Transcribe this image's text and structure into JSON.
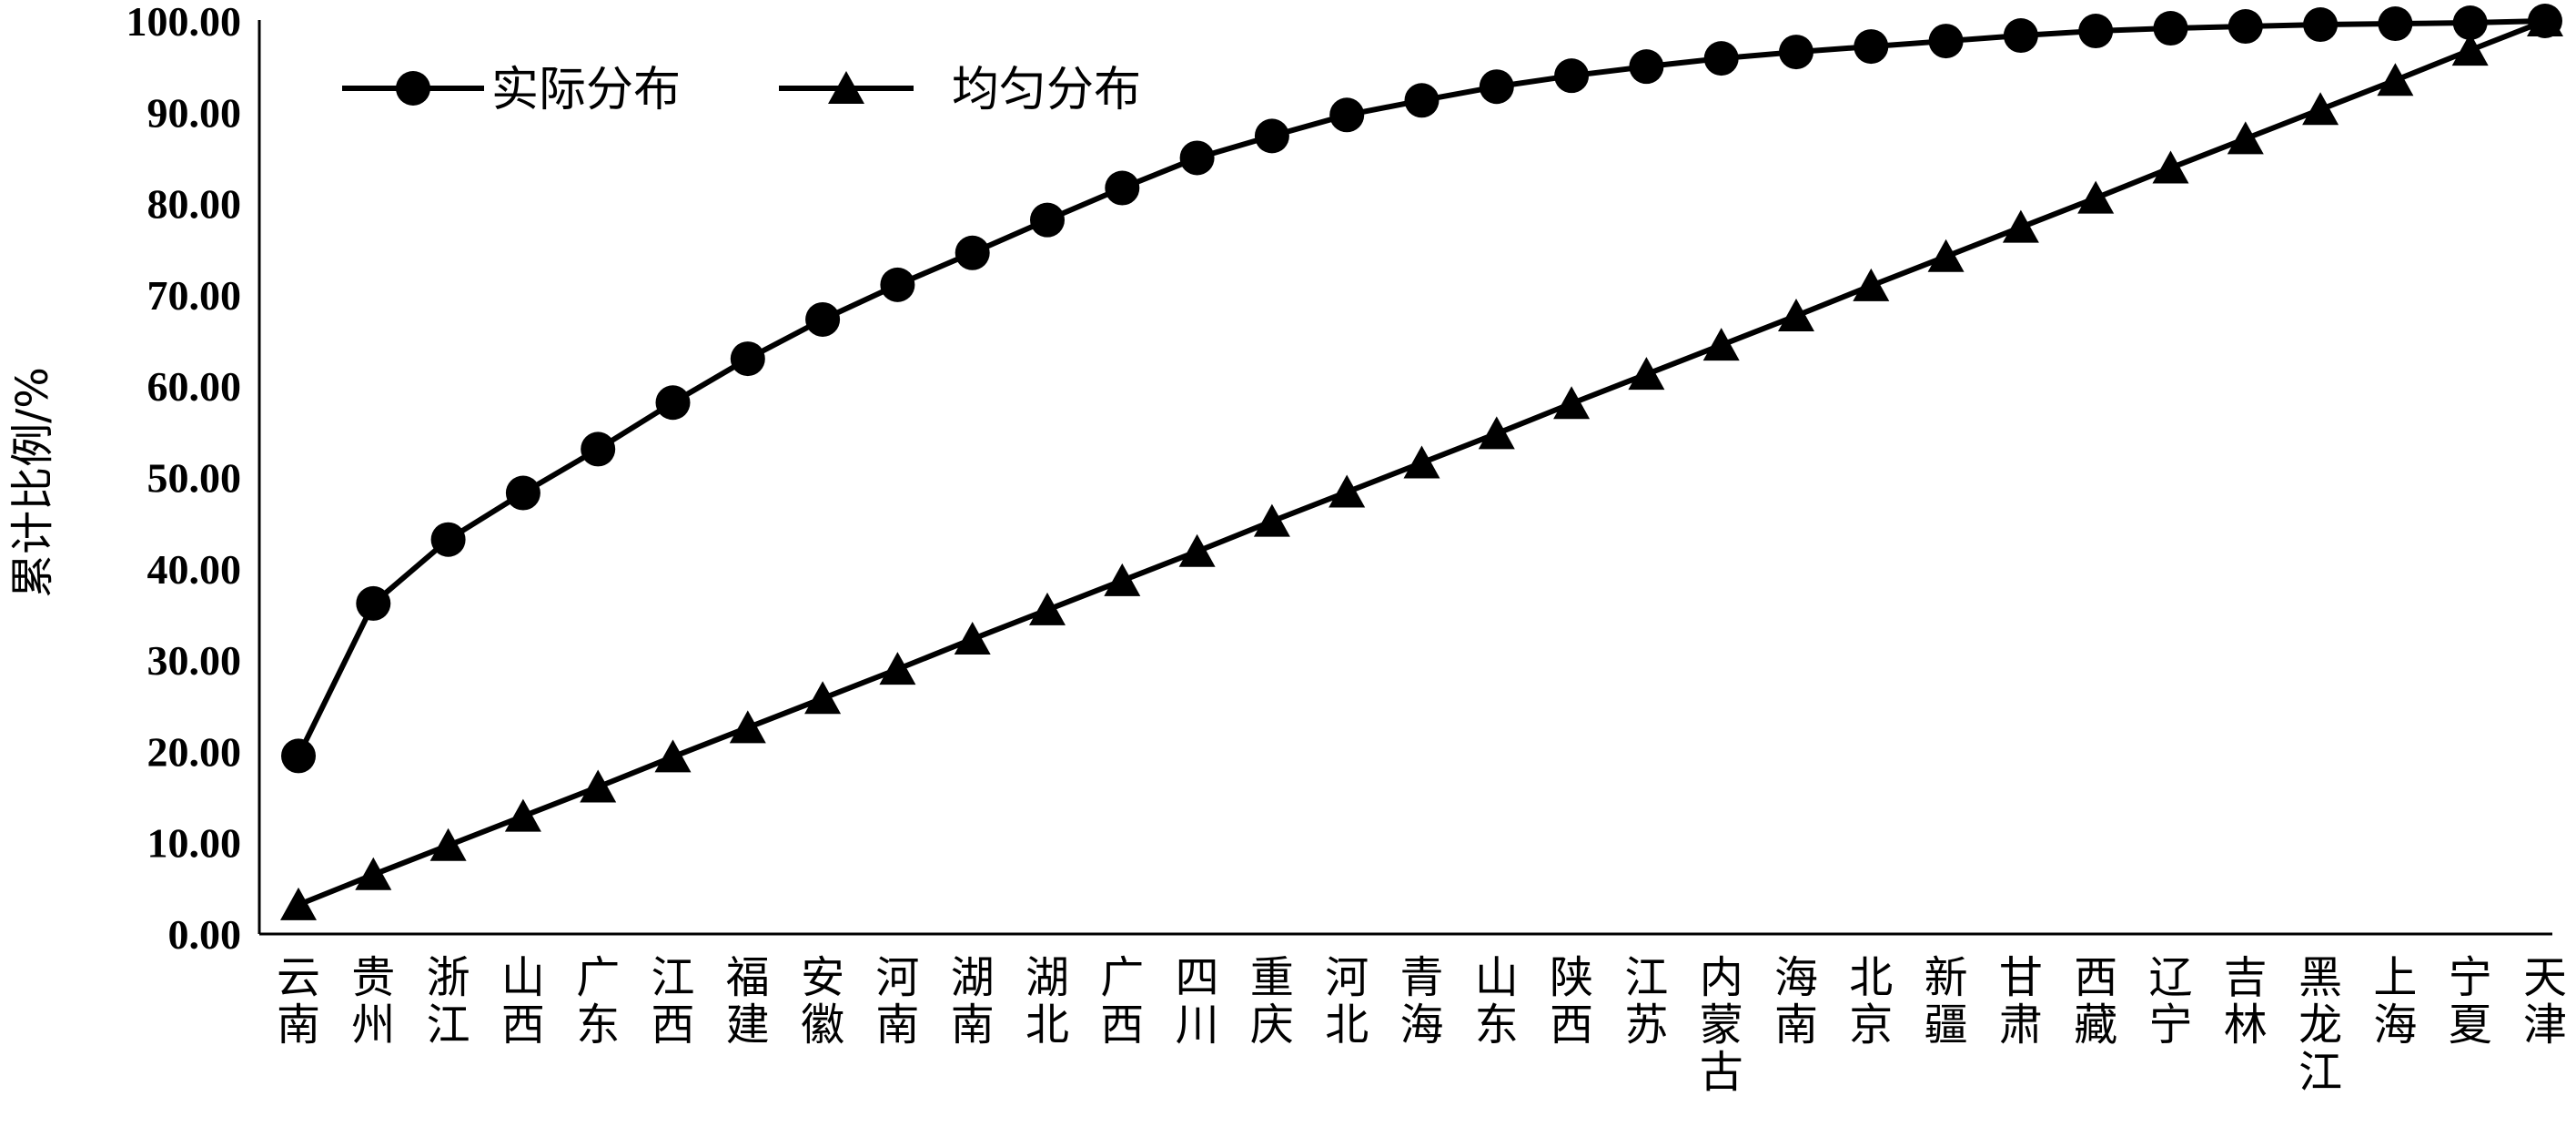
{
  "chart_data": {
    "type": "line",
    "ylabel": "累计比例/%",
    "ylim": [
      0,
      100
    ],
    "yticks": [
      "0.00",
      "10.00",
      "20.00",
      "30.00",
      "40.00",
      "50.00",
      "60.00",
      "70.00",
      "80.00",
      "90.00",
      "100.00"
    ],
    "categories": [
      "云南",
      "贵州",
      "浙江",
      "山西",
      "广东",
      "江西",
      "福建",
      "安徽",
      "河南",
      "湖南",
      "湖北",
      "广西",
      "四川",
      "重庆",
      "河北",
      "青海",
      "山东",
      "陕西",
      "江苏",
      "内蒙古",
      "海南",
      "北京",
      "新疆",
      "甘肃",
      "西藏",
      "辽宁",
      "吉林",
      "黑龙江",
      "上海",
      "宁夏",
      "天津"
    ],
    "legend_position": "top-left",
    "grid": false,
    "series": [
      {
        "name": "实际分布",
        "marker": "circle",
        "values": [
          19.5,
          36.2,
          43.2,
          48.3,
          53.1,
          58.2,
          63.0,
          67.3,
          71.1,
          74.6,
          78.2,
          81.7,
          85.0,
          87.4,
          89.7,
          91.3,
          92.8,
          94.0,
          95.0,
          95.9,
          96.6,
          97.2,
          97.8,
          98.4,
          98.9,
          99.2,
          99.4,
          99.6,
          99.7,
          99.8,
          100.0
        ]
      },
      {
        "name": "均匀分布",
        "marker": "triangle",
        "values": [
          3.2,
          6.5,
          9.7,
          12.9,
          16.1,
          19.4,
          22.6,
          25.8,
          29.0,
          32.3,
          35.5,
          38.7,
          41.9,
          45.2,
          48.4,
          51.6,
          54.8,
          58.1,
          61.3,
          64.5,
          67.7,
          71.0,
          74.2,
          77.4,
          80.6,
          83.9,
          87.1,
          90.3,
          93.5,
          96.8,
          100.0
        ]
      }
    ]
  }
}
